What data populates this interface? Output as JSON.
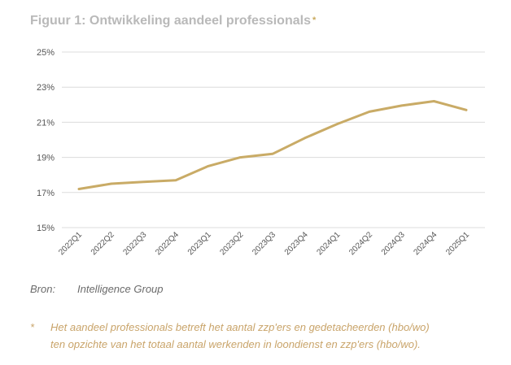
{
  "header": {
    "title": "Figuur 1: Ontwikkeling aandeel professionals",
    "title_marker": "*"
  },
  "chart_data": {
    "type": "line",
    "title": "Figuur 1: Ontwikkeling aandeel professionals",
    "xlabel": "",
    "ylabel": "",
    "categories": [
      "2022Q1",
      "2022Q2",
      "2022Q3",
      "2022Q4",
      "2023Q1",
      "2023Q2",
      "2023Q3",
      "2023Q4",
      "2024Q1",
      "2024Q2",
      "2024Q3",
      "2024Q4",
      "2025Q1"
    ],
    "series": [
      {
        "values": [
          17.2,
          17.5,
          17.6,
          17.7,
          18.5,
          19.0,
          19.2,
          20.1,
          20.9,
          21.6,
          21.95,
          22.2,
          21.7
        ],
        "color": "#c9ab66"
      }
    ],
    "y_ticks": [
      15,
      17,
      19,
      21,
      23,
      25
    ],
    "y_tick_labels": [
      "15%",
      "17%",
      "19%",
      "21%",
      "23%",
      "25%"
    ],
    "ylim": [
      15,
      25
    ],
    "grid": true,
    "legend": "none",
    "colors": {
      "line": "#c9ab66",
      "grid": "#dcdcdc",
      "tick_text": "#555555"
    }
  },
  "source": {
    "label": "Bron:",
    "value": "Intelligence Group"
  },
  "footnote": {
    "marker": "*",
    "lines": [
      "Het aandeel professionals betreft het aantal zzp'ers en gedetacheerden (hbo/wo)",
      "ten opzichte van het totaal aantal werkenden in loondienst en zzp'ers (hbo/wo)."
    ]
  }
}
